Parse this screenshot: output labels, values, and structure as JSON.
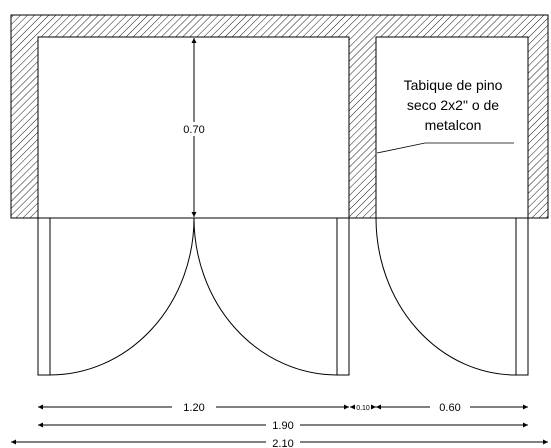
{
  "plan": {
    "depth_label": "0.70",
    "note_lines": [
      "Tabique de pino",
      "seco 2x2\" o de",
      "metalcon"
    ],
    "dimensions": {
      "left_opening": "1.20",
      "gap": "0.10",
      "right_opening": "0.60",
      "inner_total": "1.90",
      "outer_total": "2.10"
    }
  }
}
